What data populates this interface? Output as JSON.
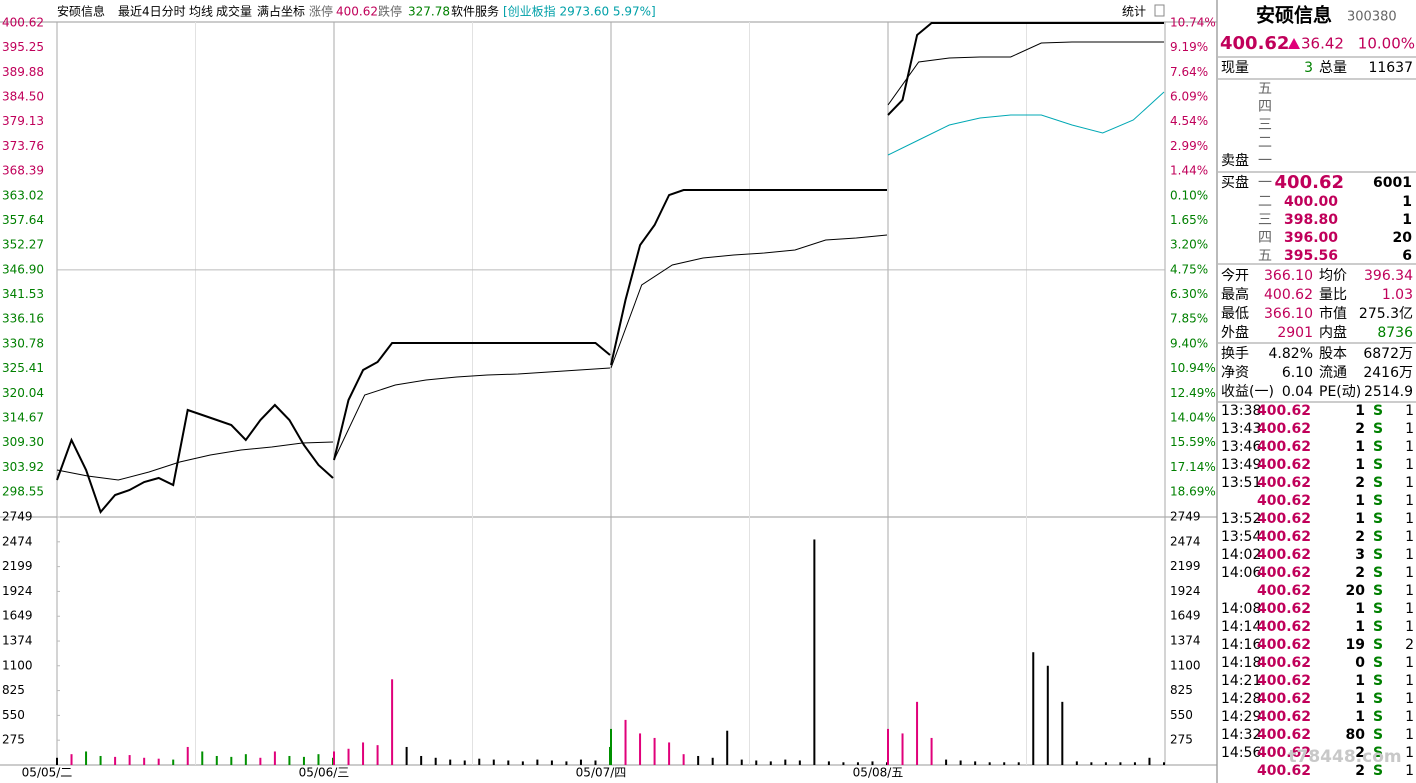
{
  "header": {
    "name": "安硕信息",
    "period": "最近4日分时",
    "avg_line": "均线",
    "volume": "成交量",
    "coords": "满占坐标",
    "limit_up_label": "涨停",
    "limit_up": 400.62,
    "limit_down_label": "跌停",
    "limit_down": 327.78,
    "sector": "软件服务",
    "index_info": "[创业板指 2973.60 5.97%]",
    "stats_button": "统计"
  },
  "chart": {
    "price_ylim": [
      293.11,
      400.62
    ],
    "price_ticks": [
      400.62,
      395.25,
      389.88,
      {
        "value": 384.5,
        "label": "384.50"
      },
      379.13,
      373.76,
      368.39,
      363.02,
      357.64,
      352.27,
      {
        "value": 346.9,
        "label": "346.90"
      },
      341.53,
      336.16,
      330.78,
      325.41,
      320.04,
      314.67,
      {
        "value": 309.3,
        "label": "309.30"
      },
      303.92,
      298.55
    ],
    "pct_labels": [
      "10.74%",
      "9.19%",
      "7.64%",
      "6.09%",
      "4.54%",
      "2.99%",
      "1.44%",
      "0.10%",
      "1.65%",
      "3.20%",
      "4.75%",
      "6.30%",
      "7.85%",
      "9.40%",
      "10.94%",
      "12.49%",
      "14.04%",
      "15.59%",
      "17.14%",
      "18.69%"
    ],
    "volume_ylim": [
      0,
      2749
    ],
    "volume_ticks": [
      2749,
      2474,
      2199,
      1924,
      1649,
      1374,
      1100,
      825,
      550,
      275
    ],
    "days": [
      {
        "date": "05/05/二",
        "price": [
          301.16,
          309.87,
          303.34,
          294.2,
          297.9,
          298.99,
          300.73,
          301.6,
          300.08,
          316.4,
          315.31,
          314.22,
          313.13,
          309.87,
          314.22,
          317.49,
          314.22,
          308.78,
          304.43,
          301.6
        ],
        "avg": [
          303.34,
          302.03,
          301.16,
          302.91,
          305.08,
          306.6,
          307.69,
          308.35,
          309.22,
          309.43
        ],
        "volume": [
          80,
          120,
          150,
          100,
          90,
          110,
          80,
          70,
          60,
          200,
          150,
          100,
          90,
          120,
          80,
          150,
          100,
          90,
          120,
          80
        ]
      },
      {
        "date": "05/06/三",
        "price": [
          305.52,
          318.57,
          325.1,
          326.84,
          330.98,
          330.98,
          330.98,
          330.98,
          330.98,
          330.98,
          330.98,
          330.98,
          330.98,
          330.98,
          330.98,
          330.98,
          330.98,
          330.98,
          330.98,
          328.37
        ],
        "avg": [
          305.52,
          319.66,
          321.84,
          322.93,
          323.58,
          324.01,
          324.23,
          324.67,
          325.1,
          325.54
        ],
        "volume": [
          150,
          180,
          250,
          220,
          950,
          200,
          100,
          80,
          60,
          50,
          70,
          60,
          50,
          40,
          60,
          50,
          40,
          60,
          50,
          200
        ]
      },
      {
        "date": "05/07/四",
        "price": [
          326.19,
          340.34,
          352.31,
          356.66,
          363.19,
          364.28,
          364.28,
          364.28,
          364.28,
          364.28,
          364.28,
          364.28,
          364.28,
          364.28,
          364.28,
          364.28,
          364.28,
          364.28,
          364.28,
          364.28
        ],
        "avg": [
          325.54,
          343.6,
          347.95,
          349.48,
          350.13,
          350.57,
          351.22,
          353.39,
          353.83,
          354.48
        ],
        "volume": [
          400,
          500,
          350,
          300,
          250,
          120,
          100,
          80,
          380,
          60,
          50,
          40,
          60,
          50,
          2500,
          40,
          30,
          30,
          40,
          30
        ]
      },
      {
        "date": "05/08/五",
        "price": [
          380.6,
          383.86,
          398.01,
          400.62,
          400.62,
          400.62,
          400.62,
          400.62,
          400.62,
          400.62,
          400.62,
          400.62,
          400.62,
          400.62,
          400.62,
          400.62,
          400.62,
          400.62,
          400.62,
          400.62
        ],
        "avg": [
          382.77,
          392.13,
          393.0,
          393.22,
          393.22,
          396.27,
          396.49,
          396.49,
          396.49,
          396.49
        ],
        "index": [
          371.89,
          375.16,
          378.42,
          379.95,
          380.6,
          380.6,
          378.42,
          376.68,
          379.51,
          385.6
        ],
        "volume": [
          400,
          350,
          700,
          300,
          60,
          50,
          40,
          30,
          30,
          30,
          1250,
          1100,
          700,
          40,
          30,
          30,
          30,
          30,
          80,
          30
        ]
      }
    ]
  },
  "quote": {
    "name": "安硕信息",
    "code": "300380",
    "price": "400.62",
    "change": "36.42",
    "change_pct": "10.00%",
    "current_vol_label": "现量",
    "current_vol": "3",
    "total_vol_label": "总量",
    "total_vol": "11637",
    "sell_label": "卖盘",
    "sell_levels": [
      "五",
      "四",
      "三",
      "二",
      "一"
    ],
    "buy_label": "买盘",
    "buy": [
      [
        "一",
        "400.62",
        "6001"
      ],
      [
        "二",
        "400.00",
        "1"
      ],
      [
        "三",
        "398.80",
        "1"
      ],
      [
        "四",
        "396.00",
        "20"
      ],
      [
        "五",
        "395.56",
        "6"
      ]
    ],
    "stats": [
      [
        "今开",
        "366.10",
        "均价",
        "396.34"
      ],
      [
        "最高",
        "400.62",
        "量比",
        "1.03"
      ],
      [
        "最低",
        "366.10",
        "市值",
        "275.3亿"
      ],
      [
        "外盘",
        "2901",
        "内盘",
        "8736"
      ],
      [
        "换手",
        "4.82%",
        "股本",
        "6872万"
      ],
      [
        "净资",
        "6.10",
        "流通",
        "2416万"
      ],
      [
        "收益(一)",
        "0.04",
        "PE(动)",
        "2514.9"
      ]
    ],
    "trades": [
      [
        "13:38",
        "400.62",
        "1",
        "S",
        "1"
      ],
      [
        "13:43",
        "400.62",
        "2",
        "S",
        "1"
      ],
      [
        "13:46",
        "400.62",
        "1",
        "S",
        "1"
      ],
      [
        "13:49",
        "400.62",
        "1",
        "S",
        "1"
      ],
      [
        "13:51",
        "400.62",
        "2",
        "S",
        "1"
      ],
      [
        null,
        "400.62",
        "1",
        "S",
        "1"
      ],
      [
        "13:52",
        "400.62",
        "1",
        "S",
        "1"
      ],
      [
        "13:54",
        "400.62",
        "2",
        "S",
        "1"
      ],
      [
        "14:02",
        "400.62",
        "3",
        "S",
        "1"
      ],
      [
        "14:06",
        "400.62",
        "2",
        "S",
        "1"
      ],
      [
        null,
        "400.62",
        "20",
        "S",
        "1"
      ],
      [
        "14:08",
        "400.62",
        "1",
        "S",
        "1"
      ],
      [
        "14:14",
        "400.62",
        "1",
        "S",
        "1"
      ],
      [
        "14:16",
        "400.62",
        "19",
        "S",
        "2"
      ],
      [
        "14:18",
        "400.62",
        "0",
        "S",
        "1"
      ],
      [
        "14:21",
        "400.62",
        "1",
        "S",
        "1"
      ],
      [
        "14:28",
        "400.62",
        "1",
        "S",
        "1"
      ],
      [
        "14:29",
        "400.62",
        "1",
        "S",
        "1"
      ],
      [
        "14:32",
        "400.62",
        "80",
        "S",
        "1"
      ],
      [
        "14:56",
        "400.62",
        "2",
        "S",
        "1"
      ],
      [
        null,
        "400.62",
        "2",
        "S",
        "1"
      ]
    ]
  },
  "watermark": "t78448.com"
}
